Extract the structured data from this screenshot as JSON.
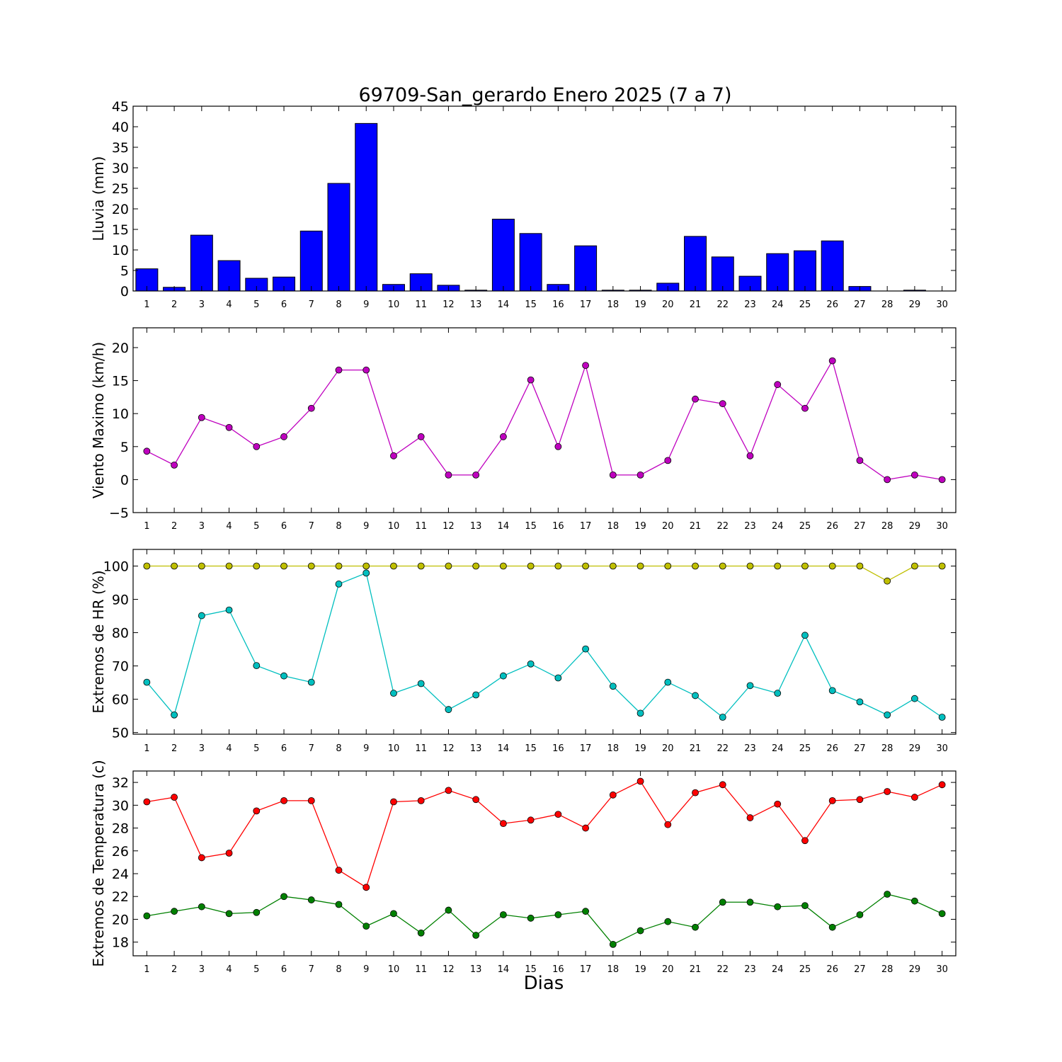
{
  "figure": {
    "title": "69709-San_gerardo Enero 2025  (7 a 7)",
    "xlabel": "Dias"
  },
  "chart_data": [
    {
      "type": "bar",
      "ylabel": "Lluvia (mm)",
      "ylim": [
        0,
        45
      ],
      "yticks": [
        0,
        5,
        10,
        15,
        20,
        25,
        30,
        35,
        40,
        45
      ],
      "x": [
        1,
        2,
        3,
        4,
        5,
        6,
        7,
        8,
        9,
        10,
        11,
        12,
        13,
        14,
        15,
        16,
        17,
        18,
        19,
        20,
        21,
        22,
        23,
        24,
        25,
        26,
        27,
        28,
        29,
        30
      ],
      "series": [
        {
          "values": [
            5.4,
            0.9,
            13.6,
            7.4,
            3.1,
            3.4,
            14.6,
            26.2,
            40.8,
            1.6,
            4.2,
            1.4,
            0.2,
            17.5,
            14.0,
            1.6,
            11.0,
            0.2,
            0.2,
            1.9,
            13.3,
            8.3,
            3.6,
            9.1,
            9.8,
            12.2,
            1.1,
            0.0,
            0.2,
            0.0
          ],
          "color": "#0000ff"
        }
      ],
      "grid": false
    },
    {
      "type": "line",
      "ylabel": "Viento Maximo (km/h)",
      "ylim": [
        -5,
        23
      ],
      "yticks": [
        -5,
        0,
        5,
        10,
        15,
        20
      ],
      "ytick_labels": [
        "−5",
        "0",
        "5",
        "10",
        "15",
        "20"
      ],
      "x": [
        1,
        2,
        3,
        4,
        5,
        6,
        7,
        8,
        9,
        10,
        11,
        12,
        13,
        14,
        15,
        16,
        17,
        18,
        19,
        20,
        21,
        22,
        23,
        24,
        25,
        26,
        27,
        28,
        29,
        30
      ],
      "series": [
        {
          "values": [
            4.3,
            2.2,
            9.4,
            7.9,
            5.0,
            6.5,
            10.8,
            16.6,
            16.6,
            3.6,
            6.5,
            0.7,
            0.7,
            6.5,
            15.1,
            5.0,
            17.3,
            0.7,
            0.7,
            2.9,
            12.2,
            11.5,
            3.6,
            14.4,
            10.8,
            18.0,
            2.9,
            0.0,
            0.7,
            0.0
          ],
          "color": "#bf00bf"
        }
      ],
      "grid": false
    },
    {
      "type": "line",
      "ylabel": "Extremos de HR (%)",
      "ylim": [
        49.5,
        105
      ],
      "yticks": [
        50,
        60,
        70,
        80,
        90,
        100
      ],
      "x": [
        1,
        2,
        3,
        4,
        5,
        6,
        7,
        8,
        9,
        10,
        11,
        12,
        13,
        14,
        15,
        16,
        17,
        18,
        19,
        20,
        21,
        22,
        23,
        24,
        25,
        26,
        27,
        28,
        29,
        30
      ],
      "series": [
        {
          "values": [
            100,
            100,
            100,
            100,
            100,
            100,
            100,
            100,
            100,
            100,
            100,
            100,
            100,
            100,
            100,
            100,
            100,
            100,
            100,
            100,
            100,
            100,
            100,
            100,
            100,
            100,
            100,
            95.5,
            100,
            100
          ],
          "color": "#bfbf00"
        },
        {
          "values": [
            65.1,
            55.3,
            85.1,
            86.8,
            70.1,
            67.0,
            65.1,
            94.6,
            97.9,
            61.8,
            64.7,
            56.9,
            61.3,
            67.0,
            70.6,
            66.4,
            75.1,
            63.9,
            55.8,
            65.1,
            61.1,
            54.6,
            64.1,
            61.8,
            79.2,
            62.6,
            59.2,
            55.3,
            60.2,
            54.6
          ],
          "color": "#00bfbf"
        }
      ],
      "grid": false
    },
    {
      "type": "line",
      "ylabel": "Extremos de Temperatura (c)",
      "ylim": [
        16.8,
        33
      ],
      "yticks": [
        18,
        20,
        22,
        24,
        26,
        28,
        30,
        32
      ],
      "x": [
        1,
        2,
        3,
        4,
        5,
        6,
        7,
        8,
        9,
        10,
        11,
        12,
        13,
        14,
        15,
        16,
        17,
        18,
        19,
        20,
        21,
        22,
        23,
        24,
        25,
        26,
        27,
        28,
        29,
        30
      ],
      "series": [
        {
          "values": [
            30.3,
            30.7,
            25.4,
            25.8,
            29.5,
            30.4,
            30.4,
            24.3,
            22.8,
            30.3,
            30.4,
            31.3,
            30.5,
            28.4,
            28.7,
            29.2,
            28.0,
            30.9,
            32.1,
            28.3,
            31.1,
            31.8,
            28.9,
            30.1,
            26.9,
            30.4,
            30.5,
            31.2,
            30.7,
            31.8
          ],
          "color": "#ff0000"
        },
        {
          "values": [
            20.3,
            20.7,
            21.1,
            20.5,
            20.6,
            22.0,
            21.7,
            21.3,
            19.4,
            20.5,
            18.8,
            20.8,
            18.6,
            20.4,
            20.1,
            20.4,
            20.7,
            17.8,
            19.0,
            19.8,
            19.3,
            21.5,
            21.5,
            21.1,
            21.2,
            19.3,
            20.4,
            22.2,
            21.6,
            20.5
          ],
          "color": "#008000"
        }
      ],
      "grid": false
    }
  ]
}
